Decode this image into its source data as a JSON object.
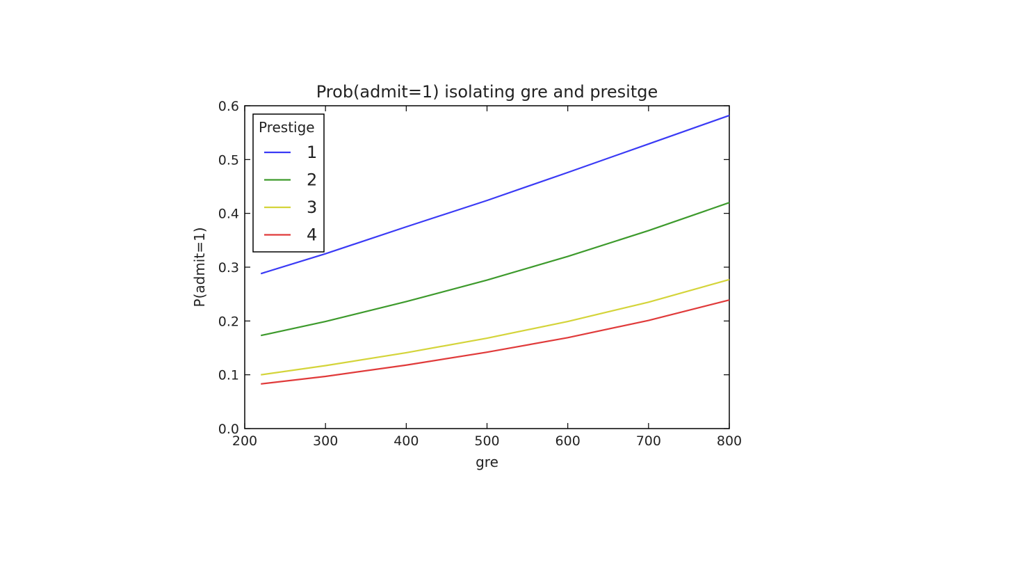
{
  "chart_data": {
    "type": "line",
    "title": "Prob(admit=1) isolating gre and presitge",
    "xlabel": "gre",
    "ylabel": "P(admit=1)",
    "xlim": [
      200,
      800
    ],
    "ylim": [
      0.0,
      0.6
    ],
    "xticks": [
      200,
      300,
      400,
      500,
      600,
      700,
      800
    ],
    "yticks": [
      0.0,
      0.1,
      0.2,
      0.3,
      0.4,
      0.5,
      0.6
    ],
    "xtick_labels": [
      "200",
      "300",
      "400",
      "500",
      "600",
      "700",
      "800"
    ],
    "ytick_labels": [
      "0.0",
      "0.1",
      "0.2",
      "0.3",
      "0.4",
      "0.5",
      "0.6"
    ],
    "grid": false,
    "legend": {
      "title": "Prestige",
      "placement": "top-left"
    },
    "x": [
      220,
      300,
      400,
      500,
      600,
      700,
      800
    ],
    "series": [
      {
        "name": "1",
        "color": "#3a3af5",
        "values": [
          0.288,
          0.325,
          0.375,
          0.424,
          0.476,
          0.529,
          0.582
        ]
      },
      {
        "name": "2",
        "color": "#3d9a2c",
        "values": [
          0.173,
          0.199,
          0.236,
          0.276,
          0.32,
          0.368,
          0.42
        ]
      },
      {
        "name": "3",
        "color": "#d4d43a",
        "values": [
          0.1,
          0.117,
          0.141,
          0.168,
          0.199,
          0.235,
          0.277
        ]
      },
      {
        "name": "4",
        "color": "#e03a3a",
        "values": [
          0.083,
          0.097,
          0.118,
          0.142,
          0.169,
          0.201,
          0.239
        ]
      }
    ]
  }
}
